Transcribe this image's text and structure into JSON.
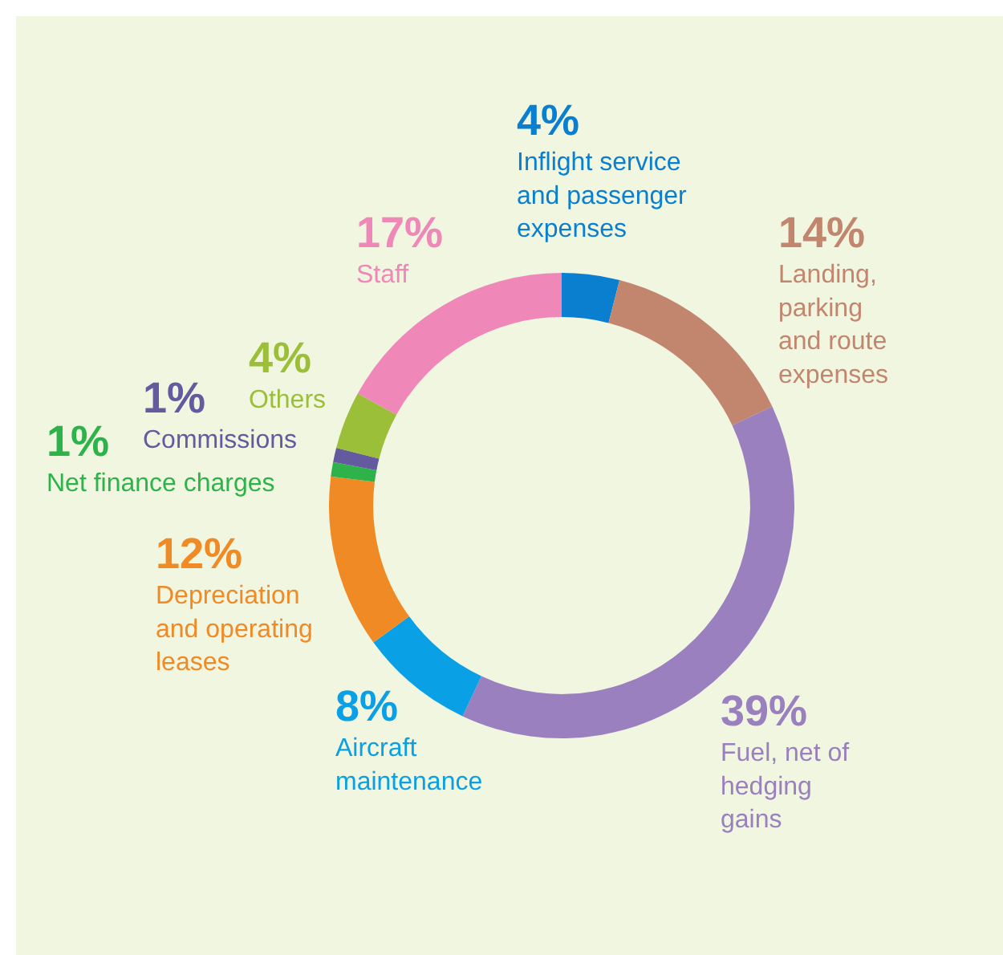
{
  "chart_data": {
    "type": "donut",
    "categories": [
      "Inflight service and passenger expenses",
      "Landing, parking and route expenses",
      "Fuel, net of hedging gains",
      "Aircraft maintenance",
      "Depreciation and operating leases",
      "Net finance charges",
      "Commissions",
      "Others",
      "Staff"
    ],
    "values": [
      4,
      14,
      39,
      8,
      12,
      1,
      1,
      4,
      17
    ],
    "value_labels": [
      "4%",
      "14%",
      "39%",
      "8%",
      "12%",
      "1%",
      "1%",
      "4%",
      "17%"
    ],
    "colors": [
      "#0a7fd0",
      "#c2866f",
      "#9a80bf",
      "#0aa0e6",
      "#f08a25",
      "#2db34a",
      "#645aa0",
      "#9cbf3a",
      "#ef88b8"
    ],
    "legend": false
  }
}
